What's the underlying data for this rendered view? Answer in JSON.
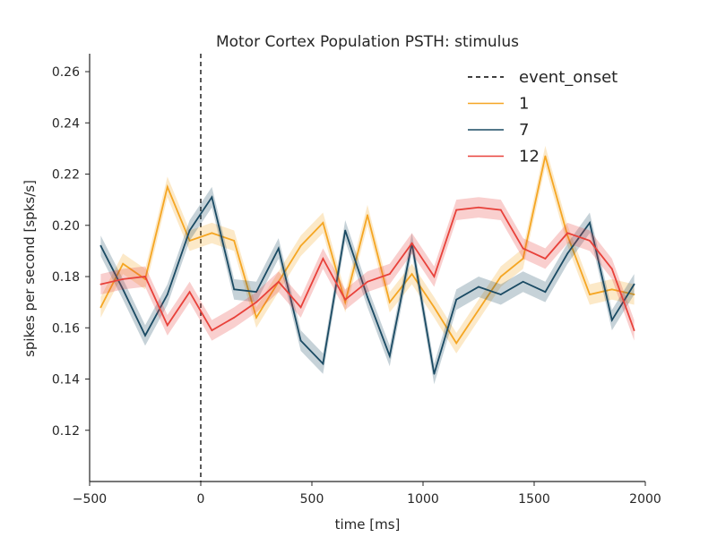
{
  "chart_data": {
    "type": "line",
    "title": "Motor Cortex Population PSTH: stimulus",
    "xlabel": "time [ms]",
    "ylabel": "spikes per second [spks/s]",
    "xlim": [
      -500,
      2000
    ],
    "ylim": [
      0.1,
      0.267
    ],
    "xticks": [
      -500,
      0,
      500,
      1000,
      1500,
      2000
    ],
    "xtick_labels": [
      "−500",
      "0",
      "500",
      "1000",
      "1500",
      "2000"
    ],
    "yticks": [
      0.12,
      0.14,
      0.16,
      0.18,
      0.2,
      0.22,
      0.24,
      0.26
    ],
    "ytick_labels": [
      "0.12",
      "0.14",
      "0.16",
      "0.18",
      "0.20",
      "0.22",
      "0.24",
      "0.26"
    ],
    "grid": false,
    "legend_position": "top-right",
    "event_line": {
      "name": "event_onset",
      "x": 0,
      "color": "#000000"
    },
    "x": [
      -450,
      -350,
      -250,
      -150,
      -50,
      50,
      150,
      250,
      350,
      450,
      550,
      650,
      750,
      850,
      950,
      1050,
      1150,
      1250,
      1350,
      1450,
      1550,
      1650,
      1750,
      1850,
      1950
    ],
    "band": 0.004,
    "series": [
      {
        "name": "1",
        "color": "#f5a623",
        "values": [
          0.168,
          0.185,
          0.179,
          0.215,
          0.194,
          0.197,
          0.194,
          0.164,
          0.178,
          0.192,
          0.201,
          0.17,
          0.204,
          0.17,
          0.181,
          0.168,
          0.154,
          0.167,
          0.18,
          0.187,
          0.227,
          0.196,
          0.173,
          0.175,
          0.173
        ]
      },
      {
        "name": "7",
        "color": "#1a4a63",
        "values": [
          0.192,
          0.175,
          0.157,
          0.173,
          0.198,
          0.211,
          0.175,
          0.174,
          0.191,
          0.155,
          0.146,
          0.198,
          0.172,
          0.149,
          0.193,
          0.142,
          0.171,
          0.176,
          0.173,
          0.178,
          0.174,
          0.189,
          0.201,
          0.163,
          0.177
        ]
      },
      {
        "name": "12",
        "color": "#e8413a",
        "values": [
          0.177,
          0.179,
          0.18,
          0.161,
          0.174,
          0.159,
          0.164,
          0.17,
          0.178,
          0.168,
          0.187,
          0.171,
          0.178,
          0.181,
          0.193,
          0.18,
          0.206,
          0.207,
          0.206,
          0.191,
          0.187,
          0.197,
          0.194,
          0.183,
          0.159
        ]
      }
    ]
  }
}
